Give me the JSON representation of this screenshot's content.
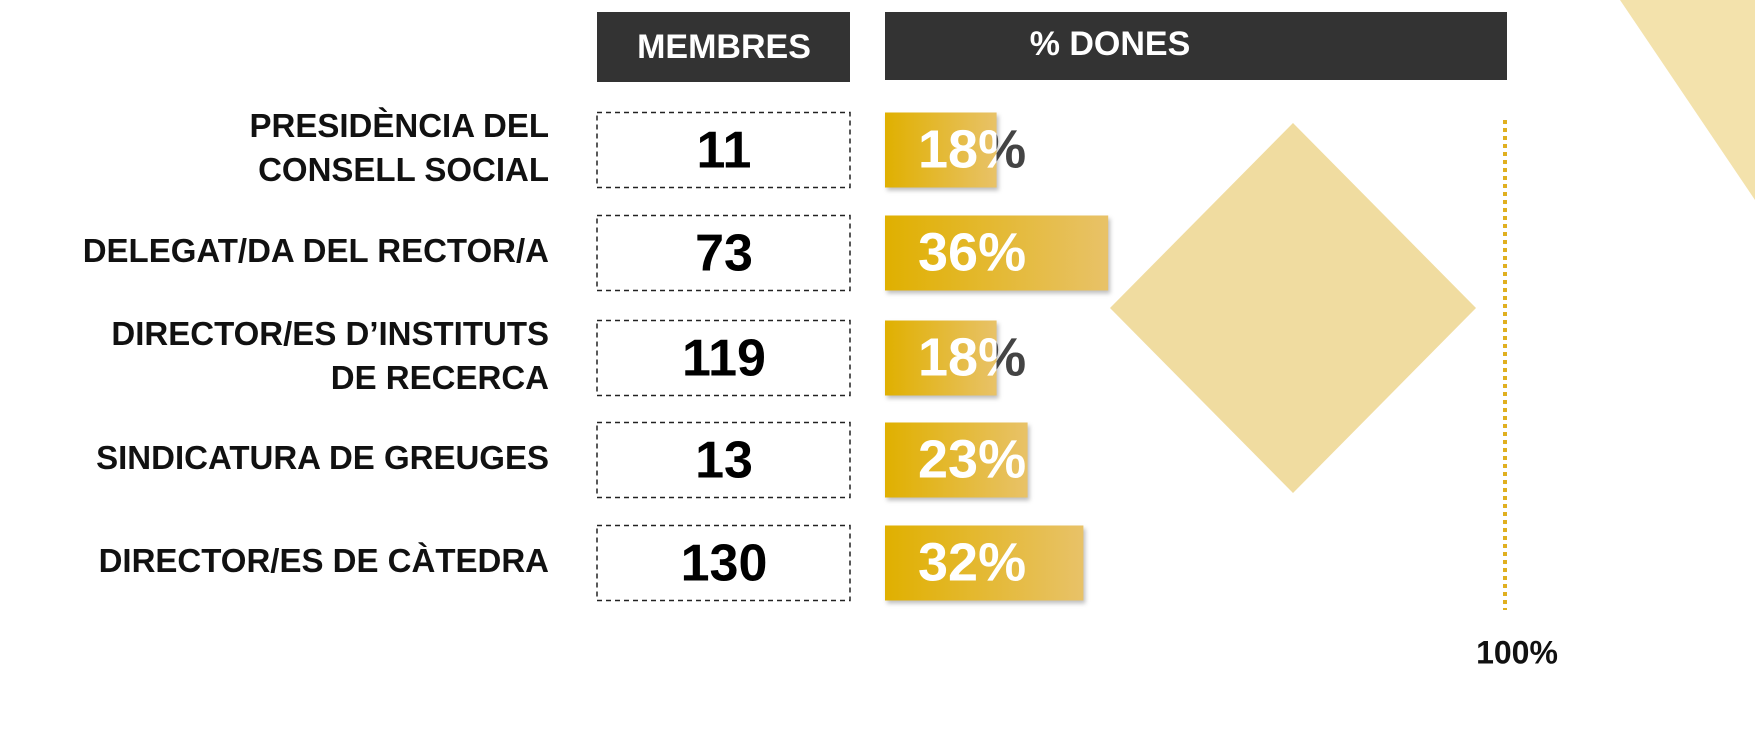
{
  "chart_data": {
    "type": "bar",
    "members_header": "MEMBRES",
    "values_header": "% DONES",
    "categories": [
      [
        "PRESIDÈNCIA DEL",
        "CONSELL SOCIAL"
      ],
      [
        "DELEGAT/DA DEL RECTOR/A"
      ],
      [
        "DIRECTOR/ES D’INSTITUTS",
        "DE RECERCA"
      ],
      [
        "SINDICATURA DE GREUGES"
      ],
      [
        "DIRECTOR/ES DE CÀTEDRA"
      ]
    ],
    "members": [
      11,
      73,
      119,
      13,
      130
    ],
    "values": [
      18,
      36,
      18,
      23,
      32
    ],
    "value_labels": [
      "18%",
      "36%",
      "18%",
      "23%",
      "32%"
    ],
    "color": "#e0b000",
    "xlim": [
      0,
      100
    ],
    "xticks": [
      {
        "value": 100,
        "label": "100%"
      }
    ]
  }
}
